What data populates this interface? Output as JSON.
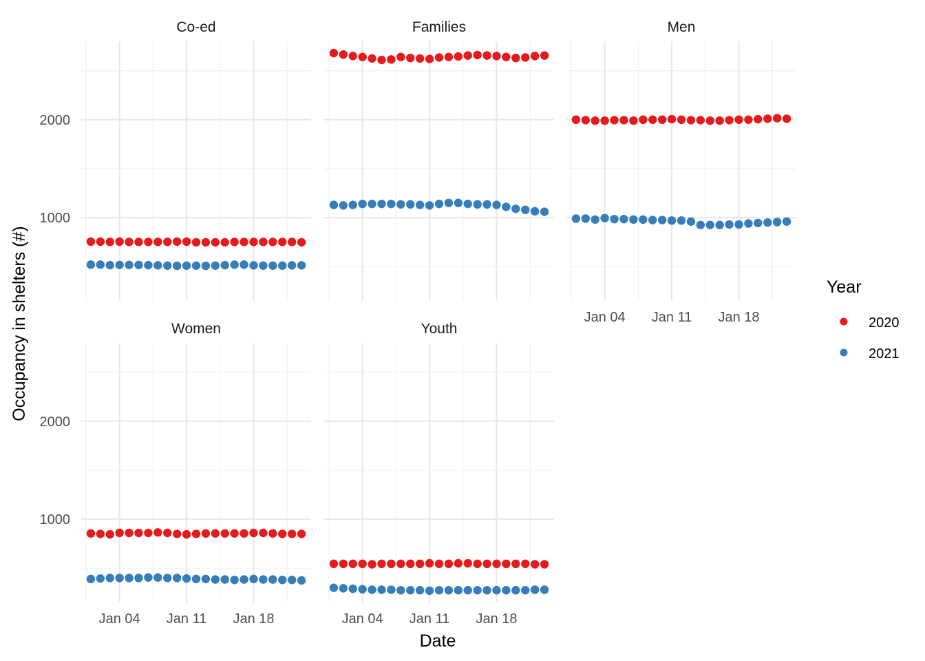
{
  "chart_data": {
    "type": "scatter",
    "facet_by": "type",
    "xlabel": "Date",
    "ylabel": "Occupancy in shelters (#)",
    "x_tick_labels": [
      "Jan 04",
      "Jan 11",
      "Jan 18"
    ],
    "x_ticks": [
      "2021-01-04",
      "2021-01-11",
      "2021-01-18"
    ],
    "xlim": [
      "2020-12-31",
      "2021-01-24"
    ],
    "y_ticks": [
      1000,
      2000
    ],
    "ylim": [
      150,
      2800
    ],
    "x_dates": [
      "2021-01-01",
      "2021-01-02",
      "2021-01-03",
      "2021-01-04",
      "2021-01-05",
      "2021-01-06",
      "2021-01-07",
      "2021-01-08",
      "2021-01-09",
      "2021-01-10",
      "2021-01-11",
      "2021-01-12",
      "2021-01-13",
      "2021-01-14",
      "2021-01-15",
      "2021-01-16",
      "2021-01-17",
      "2021-01-18",
      "2021-01-19",
      "2021-01-20",
      "2021-01-21",
      "2021-01-22",
      "2021-01-23"
    ],
    "legend": {
      "title": "Year",
      "position": "right",
      "entries": [
        {
          "name": "2020",
          "color": "#E41A1C"
        },
        {
          "name": "2021",
          "color": "#377EB8"
        }
      ]
    },
    "panels": [
      {
        "title": "Co-ed",
        "series": [
          {
            "name": "2020",
            "values": [
              755,
              755,
              752,
              755,
              752,
              752,
              752,
              752,
              752,
              755,
              755,
              748,
              748,
              748,
              748,
              752,
              752,
              752,
              752,
              752,
              752,
              752,
              748
            ]
          },
          {
            "name": "2021",
            "values": [
              520,
              520,
              515,
              517,
              517,
              517,
              515,
              513,
              510,
              508,
              510,
              510,
              508,
              510,
              515,
              520,
              520,
              513,
              510,
              510,
              510,
              513,
              513
            ]
          }
        ]
      },
      {
        "title": "Families",
        "series": [
          {
            "name": "2020",
            "values": [
              2680,
              2665,
              2650,
              2640,
              2625,
              2610,
              2615,
              2640,
              2630,
              2625,
              2620,
              2635,
              2640,
              2645,
              2655,
              2660,
              2655,
              2650,
              2640,
              2630,
              2635,
              2650,
              2655
            ]
          },
          {
            "name": "2021",
            "values": [
              1130,
              1125,
              1130,
              1140,
              1140,
              1140,
              1140,
              1135,
              1135,
              1130,
              1125,
              1140,
              1150,
              1150,
              1140,
              1135,
              1135,
              1130,
              1110,
              1090,
              1080,
              1065,
              1060
            ]
          }
        ]
      },
      {
        "title": "Men",
        "series": [
          {
            "name": "2020",
            "values": [
              2000,
              1995,
              1990,
              1990,
              1995,
              1995,
              1990,
              2000,
              2000,
              2000,
              2005,
              2000,
              1995,
              1995,
              1990,
              1990,
              1995,
              2000,
              2000,
              2005,
              2010,
              2015,
              2010
            ]
          },
          {
            "name": "2021",
            "values": [
              990,
              990,
              980,
              995,
              985,
              985,
              980,
              980,
              975,
              975,
              970,
              970,
              960,
              925,
              925,
              925,
              930,
              930,
              940,
              945,
              950,
              955,
              960
            ]
          }
        ]
      },
      {
        "title": "Women",
        "series": [
          {
            "name": "2020",
            "values": [
              855,
              850,
              845,
              860,
              860,
              860,
              860,
              865,
              860,
              850,
              845,
              850,
              855,
              855,
              855,
              855,
              855,
              860,
              860,
              855,
              850,
              850,
              850
            ]
          },
          {
            "name": "2021",
            "values": [
              390,
              395,
              400,
              400,
              400,
              400,
              405,
              405,
              400,
              400,
              395,
              390,
              390,
              385,
              385,
              380,
              385,
              390,
              385,
              385,
              380,
              380,
              375
            ]
          }
        ]
      },
      {
        "title": "Youth",
        "series": [
          {
            "name": "2020",
            "values": [
              545,
              545,
              545,
              545,
              540,
              545,
              545,
              545,
              545,
              545,
              550,
              545,
              545,
              550,
              550,
              545,
              545,
              545,
              545,
              545,
              545,
              540,
              540
            ]
          },
          {
            "name": "2021",
            "values": [
              300,
              295,
              290,
              285,
              280,
              280,
              280,
              275,
              275,
              275,
              270,
              275,
              275,
              275,
              275,
              275,
              275,
              275,
              275,
              275,
              275,
              280,
              280
            ]
          }
        ]
      }
    ]
  }
}
